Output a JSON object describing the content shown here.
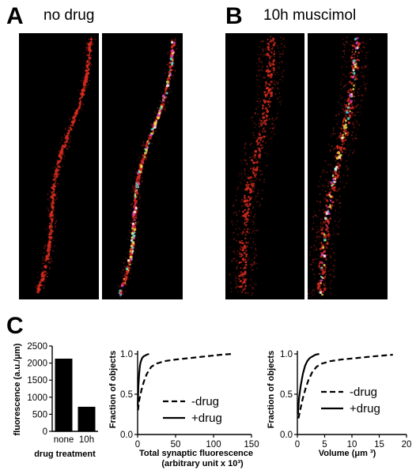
{
  "panels": {
    "a": {
      "letter": "A",
      "title": "no drug"
    },
    "b": {
      "letter": "B",
      "title": "10h muscimol"
    },
    "c": {
      "letter": "C"
    }
  },
  "colors": {
    "dendrite_red": "#d42a1e",
    "dendrite_dim": "#8a1d16",
    "merge_green": "#f4e24a",
    "merge_cyan": "#4fe3e0",
    "merge_magenta": "#e23cd6",
    "background": "#000000"
  },
  "chart_data": [
    {
      "type": "bar",
      "categories": [
        "none",
        "10h"
      ],
      "values": [
        2130,
        720
      ],
      "title": "",
      "xlabel": "drug treatment",
      "ylabel": "fluorescence (a.u./μm)",
      "ylim": [
        0,
        2500
      ],
      "yticks": [
        0,
        500,
        1000,
        1500,
        2000,
        2500
      ],
      "bar_color": "#000000"
    },
    {
      "type": "line",
      "title": "",
      "xlabel": "Total synaptic fluorescence",
      "xlabel2": "(arbitrary unit x 10³)",
      "ylabel": "Fraction of objects",
      "xlim": [
        0,
        150
      ],
      "ylim": [
        0,
        1.0
      ],
      "xticks": [
        0,
        50,
        100,
        150
      ],
      "yticks": [
        0.0,
        0.5,
        1.0
      ],
      "legend_position": "lower-right",
      "series": [
        {
          "name": "-drug",
          "style": "dashed",
          "x": [
            0.5,
            2,
            5,
            8,
            12,
            18,
            25,
            35,
            50,
            70,
            90,
            110,
            125
          ],
          "y": [
            0.3,
            0.42,
            0.55,
            0.65,
            0.75,
            0.84,
            0.88,
            0.91,
            0.93,
            0.95,
            0.97,
            0.99,
            1.0
          ]
        },
        {
          "name": "+drug",
          "style": "solid",
          "x": [
            0.2,
            1,
            2,
            3,
            4,
            6,
            8,
            10,
            12,
            15
          ],
          "y": [
            0.35,
            0.6,
            0.75,
            0.85,
            0.9,
            0.95,
            0.97,
            0.98,
            0.99,
            1.0
          ]
        }
      ]
    },
    {
      "type": "line",
      "title": "",
      "xlabel": "Volume (μm ³)",
      "ylabel": "Fraction of objects",
      "xlim": [
        0,
        20
      ],
      "ylim": [
        0,
        1.0
      ],
      "xticks": [
        0,
        5,
        10,
        15,
        20
      ],
      "yticks": [
        0.0,
        0.5,
        1.0
      ],
      "legend_position": "lower-right",
      "series": [
        {
          "name": "-drug",
          "style": "dashed",
          "x": [
            0.2,
            0.6,
            1,
            1.5,
            2,
            2.7,
            3.5,
            4.5,
            6,
            8,
            11,
            14,
            17.5
          ],
          "y": [
            0.2,
            0.33,
            0.45,
            0.57,
            0.67,
            0.77,
            0.84,
            0.88,
            0.91,
            0.93,
            0.95,
            0.97,
            0.99
          ]
        },
        {
          "name": "+drug",
          "style": "solid",
          "x": [
            0.1,
            0.3,
            0.6,
            1,
            1.4,
            1.8,
            2.3,
            2.8,
            3.3,
            4
          ],
          "y": [
            0.25,
            0.45,
            0.6,
            0.75,
            0.85,
            0.91,
            0.95,
            0.97,
            0.99,
            1.0
          ]
        }
      ]
    }
  ]
}
